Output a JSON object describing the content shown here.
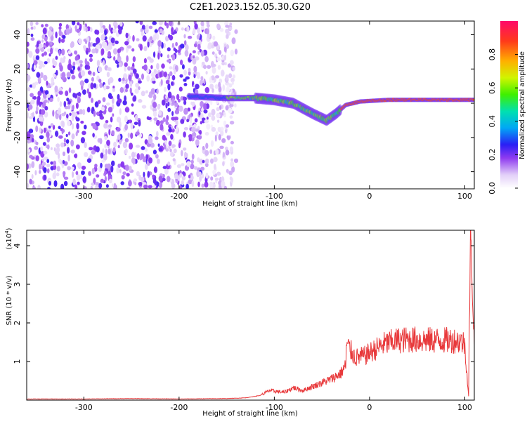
{
  "title": "C2E1.2023.152.05.30.G20",
  "chart_data": [
    {
      "type": "heatmap",
      "xlabel": "Height of straight line (km)",
      "ylabel": "Frequency (Hz)",
      "xlim": [
        -360,
        110
      ],
      "ylim": [
        -50,
        48
      ],
      "xticks": [
        "-300",
        "-200",
        "-100",
        "0",
        "100"
      ],
      "yticks": [
        "-40",
        "-20",
        "0",
        "20",
        "40"
      ],
      "colorbar": {
        "label": "Normalized spectral amplitude",
        "range": [
          0.0,
          1.0
        ],
        "ticks": [
          "0.0",
          "0.2",
          "0.4",
          "0.6",
          "0.8"
        ]
      },
      "features": [
        {
          "name": "broadband noise",
          "x_range": [
            -360,
            -140
          ],
          "y_range": [
            -50,
            48
          ],
          "amplitude": 0.15
        },
        {
          "name": "decaying band",
          "points": [
            [
              -190,
              4
            ],
            [
              -150,
              3
            ],
            [
              -120,
              3
            ],
            [
              -100,
              2
            ],
            [
              -80,
              0
            ],
            [
              -60,
              -6
            ],
            [
              -45,
              -10
            ],
            [
              -35,
              -6
            ],
            [
              -25,
              -1
            ],
            [
              -10,
              1
            ],
            [
              20,
              2
            ],
            [
              60,
              2
            ],
            [
              100,
              2
            ]
          ],
          "amplitude": 0.9
        }
      ]
    },
    {
      "type": "line",
      "xlabel": "Height of straight line (km)",
      "ylabel": "SNR (10 * v/v)",
      "yexp": "(x10",
      "yexp_sup": "4",
      "yexp_end": ")",
      "xlim": [
        -360,
        110
      ],
      "ylim": [
        0,
        4.4
      ],
      "xticks": [
        "-300",
        "-200",
        "-100",
        "0",
        "100"
      ],
      "yticks": [
        "1",
        "2",
        "3",
        "4"
      ],
      "color": "#e8393b",
      "series": [
        {
          "x": [
            -360,
            -300,
            -250,
            -200,
            -150,
            -130,
            -115,
            -105,
            -90,
            -80,
            -70,
            -60,
            -50,
            -40,
            -35,
            -30,
            -25,
            -24,
            -15,
            -5,
            5,
            15,
            30,
            45,
            60,
            75,
            90,
            98,
            100,
            104,
            106,
            110
          ],
          "y": [
            0.03,
            0.03,
            0.04,
            0.03,
            0.04,
            0.06,
            0.12,
            0.25,
            0.2,
            0.32,
            0.25,
            0.35,
            0.45,
            0.55,
            0.62,
            0.7,
            0.9,
            1.45,
            1.1,
            1.15,
            1.3,
            1.45,
            1.55,
            1.57,
            1.55,
            1.55,
            1.55,
            1.5,
            1.45,
            0.1,
            4.4,
            1.4
          ]
        }
      ]
    }
  ]
}
